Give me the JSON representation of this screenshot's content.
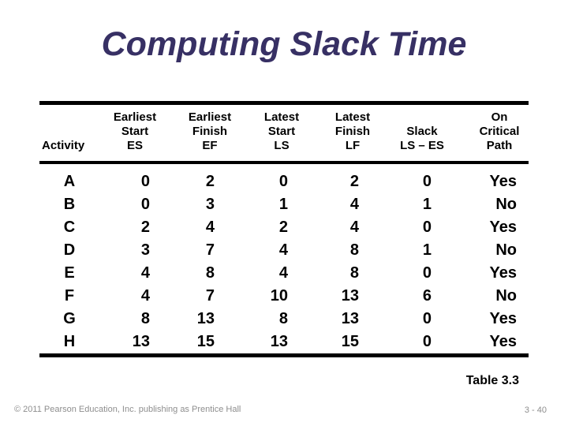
{
  "slide": {
    "title": "Computing Slack Time",
    "table_caption": "Table 3.3",
    "footer": {
      "copyright": "© 2011 Pearson Education, Inc. publishing as Prentice Hall",
      "page_number": "3 - 40"
    },
    "colors": {
      "title_text": "#373064",
      "table_text": "#000000",
      "rule": "#000000",
      "footer_text": "#8E8E8E",
      "background": "#FFFFFF"
    }
  },
  "table": {
    "headers": [
      {
        "lines": [
          "Activity"
        ]
      },
      {
        "lines": [
          "Earliest",
          "Start",
          "ES"
        ]
      },
      {
        "lines": [
          "Earliest",
          "Finish",
          "EF"
        ]
      },
      {
        "lines": [
          "Latest",
          "Start",
          "LS"
        ]
      },
      {
        "lines": [
          "Latest",
          "Finish",
          "LF"
        ]
      },
      {
        "lines": [
          "Slack",
          "LS – ES"
        ]
      },
      {
        "lines": [
          "On",
          "Critical",
          "Path"
        ]
      }
    ],
    "rows": [
      {
        "activity": "A",
        "es": "0",
        "ef": "2",
        "ls": "0",
        "lf": "2",
        "slack": "0",
        "critical": "Yes"
      },
      {
        "activity": "B",
        "es": "0",
        "ef": "3",
        "ls": "1",
        "lf": "4",
        "slack": "1",
        "critical": "No"
      },
      {
        "activity": "C",
        "es": "2",
        "ef": "4",
        "ls": "2",
        "lf": "4",
        "slack": "0",
        "critical": "Yes"
      },
      {
        "activity": "D",
        "es": "3",
        "ef": "7",
        "ls": "4",
        "lf": "8",
        "slack": "1",
        "critical": "No"
      },
      {
        "activity": "E",
        "es": "4",
        "ef": "8",
        "ls": "4",
        "lf": "8",
        "slack": "0",
        "critical": "Yes"
      },
      {
        "activity": "F",
        "es": "4",
        "ef": "7",
        "ls": "10",
        "lf": "13",
        "slack": "6",
        "critical": "No"
      },
      {
        "activity": "G",
        "es": "8",
        "ef": "13",
        "ls": "8",
        "lf": "13",
        "slack": "0",
        "critical": "Yes"
      },
      {
        "activity": "H",
        "es": "13",
        "ef": "15",
        "ls": "13",
        "lf": "15",
        "slack": "0",
        "critical": "Yes"
      }
    ]
  },
  "chart_data": {
    "type": "table",
    "title": "Computing Slack Time",
    "columns": [
      "Activity",
      "Earliest Start ES",
      "Earliest Finish EF",
      "Latest Start LS",
      "Latest Finish LF",
      "Slack LS – ES",
      "On Critical Path"
    ],
    "rows": [
      [
        "A",
        0,
        2,
        0,
        2,
        0,
        "Yes"
      ],
      [
        "B",
        0,
        3,
        1,
        4,
        1,
        "No"
      ],
      [
        "C",
        2,
        4,
        2,
        4,
        0,
        "Yes"
      ],
      [
        "D",
        3,
        7,
        4,
        8,
        1,
        "No"
      ],
      [
        "E",
        4,
        8,
        4,
        8,
        0,
        "Yes"
      ],
      [
        "F",
        4,
        7,
        10,
        13,
        6,
        "No"
      ],
      [
        "G",
        8,
        13,
        8,
        13,
        0,
        "Yes"
      ],
      [
        "H",
        13,
        15,
        13,
        15,
        0,
        "Yes"
      ]
    ]
  }
}
